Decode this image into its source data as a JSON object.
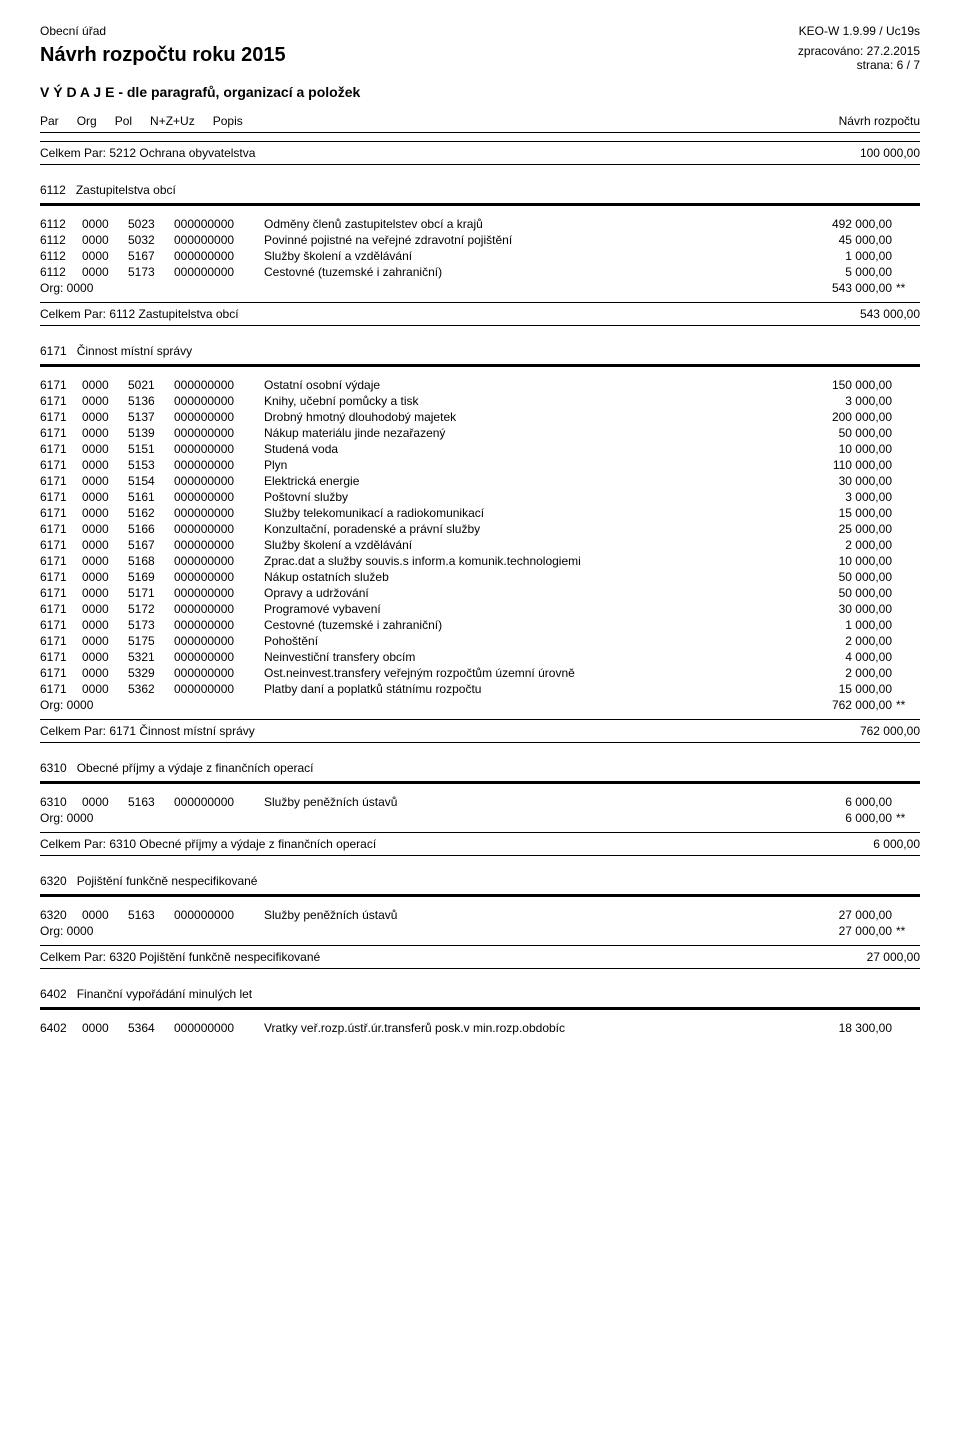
{
  "header": {
    "left": "Obecní úřad",
    "right": "KEO-W 1.9.99 / Uc19s",
    "title": "Návrh rozpočtu roku 2015",
    "processed": "zpracováno: 27.2.2015",
    "page": "strana: 6 / 7",
    "subtitle": "V Ý D A J E - dle paragrafů, organizací a položek"
  },
  "cols": {
    "par": "Par",
    "org": "Org",
    "pol": "Pol",
    "nzuz": "N+Z+Uz",
    "popis": "Popis",
    "navrh": "Návrh rozpočtu"
  },
  "org_label": "Org:  0000",
  "stars": "**",
  "line5212": {
    "label": "Celkem Par:  5212 Ochrana obyvatelstva",
    "val": "100 000,00"
  },
  "s6112": {
    "head_code": "6112",
    "head_title": "Zastupitelstva obcí",
    "rows": [
      {
        "c1": "6112",
        "c2": "0000",
        "c3": "5023",
        "c4": "000000000",
        "c5": "Odměny členů zastupitelstev obcí a krajů",
        "c6": "492 000,00"
      },
      {
        "c1": "6112",
        "c2": "0000",
        "c3": "5032",
        "c4": "000000000",
        "c5": "Povinné pojistné na veřejné zdravotní pojištění",
        "c6": "45 000,00"
      },
      {
        "c1": "6112",
        "c2": "0000",
        "c3": "5167",
        "c4": "000000000",
        "c5": "Služby školení a vzdělávání",
        "c6": "1 000,00"
      },
      {
        "c1": "6112",
        "c2": "0000",
        "c3": "5173",
        "c4": "000000000",
        "c5": "Cestovné (tuzemské i zahraniční)",
        "c6": "5 000,00"
      }
    ],
    "org_val": "543 000,00",
    "total_label": "Celkem Par:  6112 Zastupitelstva obcí",
    "total_val": "543 000,00"
  },
  "s6171": {
    "head_code": "6171",
    "head_title": "Činnost místní správy",
    "rows": [
      {
        "c1": "6171",
        "c2": "0000",
        "c3": "5021",
        "c4": "000000000",
        "c5": "Ostatní osobní výdaje",
        "c6": "150 000,00"
      },
      {
        "c1": "6171",
        "c2": "0000",
        "c3": "5136",
        "c4": "000000000",
        "c5": "Knihy, učební pomůcky a tisk",
        "c6": "3 000,00"
      },
      {
        "c1": "6171",
        "c2": "0000",
        "c3": "5137",
        "c4": "000000000",
        "c5": "Drobný hmotný dlouhodobý majetek",
        "c6": "200 000,00"
      },
      {
        "c1": "6171",
        "c2": "0000",
        "c3": "5139",
        "c4": "000000000",
        "c5": "Nákup materiálu jinde nezařazený",
        "c6": "50 000,00"
      },
      {
        "c1": "6171",
        "c2": "0000",
        "c3": "5151",
        "c4": "000000000",
        "c5": "Studená voda",
        "c6": "10 000,00"
      },
      {
        "c1": "6171",
        "c2": "0000",
        "c3": "5153",
        "c4": "000000000",
        "c5": "Plyn",
        "c6": "110 000,00"
      },
      {
        "c1": "6171",
        "c2": "0000",
        "c3": "5154",
        "c4": "000000000",
        "c5": "Elektrická energie",
        "c6": "30 000,00"
      },
      {
        "c1": "6171",
        "c2": "0000",
        "c3": "5161",
        "c4": "000000000",
        "c5": "Poštovní služby",
        "c6": "3 000,00"
      },
      {
        "c1": "6171",
        "c2": "0000",
        "c3": "5162",
        "c4": "000000000",
        "c5": "Služby telekomunikací a radiokomunikací",
        "c6": "15 000,00"
      },
      {
        "c1": "6171",
        "c2": "0000",
        "c3": "5166",
        "c4": "000000000",
        "c5": "Konzultační, poradenské a právní služby",
        "c6": "25 000,00"
      },
      {
        "c1": "6171",
        "c2": "0000",
        "c3": "5167",
        "c4": "000000000",
        "c5": "Služby školení a vzdělávání",
        "c6": "2 000,00"
      },
      {
        "c1": "6171",
        "c2": "0000",
        "c3": "5168",
        "c4": "000000000",
        "c5": "Zprac.dat a služby souvis.s inform.a komunik.technologiemi",
        "c6": "10 000,00"
      },
      {
        "c1": "6171",
        "c2": "0000",
        "c3": "5169",
        "c4": "000000000",
        "c5": "Nákup ostatních služeb",
        "c6": "50 000,00"
      },
      {
        "c1": "6171",
        "c2": "0000",
        "c3": "5171",
        "c4": "000000000",
        "c5": "Opravy a udržování",
        "c6": "50 000,00"
      },
      {
        "c1": "6171",
        "c2": "0000",
        "c3": "5172",
        "c4": "000000000",
        "c5": "Programové vybavení",
        "c6": "30 000,00"
      },
      {
        "c1": "6171",
        "c2": "0000",
        "c3": "5173",
        "c4": "000000000",
        "c5": "Cestovné (tuzemské i zahraniční)",
        "c6": "1 000,00"
      },
      {
        "c1": "6171",
        "c2": "0000",
        "c3": "5175",
        "c4": "000000000",
        "c5": "Pohoštění",
        "c6": "2 000,00"
      },
      {
        "c1": "6171",
        "c2": "0000",
        "c3": "5321",
        "c4": "000000000",
        "c5": "Neinvestiční transfery obcím",
        "c6": "4 000,00"
      },
      {
        "c1": "6171",
        "c2": "0000",
        "c3": "5329",
        "c4": "000000000",
        "c5": "Ost.neinvest.transfery veřejným rozpočtům územní úrovně",
        "c6": "2 000,00"
      },
      {
        "c1": "6171",
        "c2": "0000",
        "c3": "5362",
        "c4": "000000000",
        "c5": "Platby daní a poplatků státnímu rozpočtu",
        "c6": "15 000,00"
      }
    ],
    "org_val": "762 000,00",
    "total_label": "Celkem Par:  6171 Činnost místní správy",
    "total_val": "762 000,00"
  },
  "s6310": {
    "head_code": "6310",
    "head_title": "Obecné příjmy a výdaje z finančních operací",
    "rows": [
      {
        "c1": "6310",
        "c2": "0000",
        "c3": "5163",
        "c4": "000000000",
        "c5": "Služby peněžních ústavů",
        "c6": "6 000,00"
      }
    ],
    "org_val": "6 000,00",
    "total_label": "Celkem Par:  6310 Obecné příjmy a výdaje z finančních operací",
    "total_val": "6 000,00"
  },
  "s6320": {
    "head_code": "6320",
    "head_title": "Pojištění funkčně nespecifikované",
    "rows": [
      {
        "c1": "6320",
        "c2": "0000",
        "c3": "5163",
        "c4": "000000000",
        "c5": "Služby peněžních ústavů",
        "c6": "27 000,00"
      }
    ],
    "org_val": "27 000,00",
    "total_label": "Celkem Par:  6320 Pojištění funkčně nespecifikované",
    "total_val": "27 000,00"
  },
  "s6402": {
    "head_code": "6402",
    "head_title": "Finanční vypořádání minulých let",
    "rows": [
      {
        "c1": "6402",
        "c2": "0000",
        "c3": "5364",
        "c4": "000000000",
        "c5": "Vratky veř.rozp.ústř.úr.transferů posk.v min.rozp.obdobíc",
        "c6": "18 300,00"
      }
    ]
  }
}
